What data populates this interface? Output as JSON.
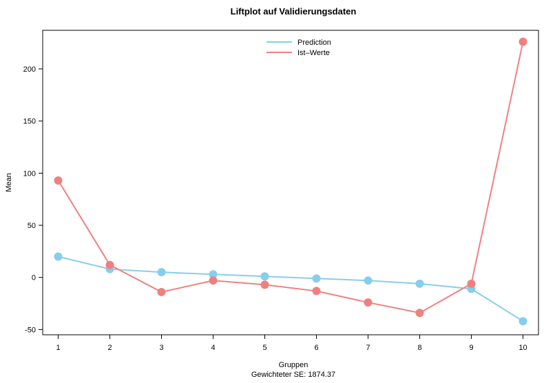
{
  "chart_data": {
    "type": "line",
    "title": "Liftplot auf Validierungsdaten",
    "xlabel": "Gruppen",
    "subtitle": "Gewichteter SE: 1874.37",
    "ylabel": "Mean",
    "x": [
      1,
      2,
      3,
      4,
      5,
      6,
      7,
      8,
      9,
      10
    ],
    "xticks": [
      "1",
      "2",
      "3",
      "4",
      "5",
      "6",
      "7",
      "8",
      "9",
      "10"
    ],
    "yticks": [
      -50,
      0,
      50,
      100,
      150,
      200
    ],
    "xlim": [
      0.7,
      10.3
    ],
    "ylim": [
      -55,
      237
    ],
    "grid": false,
    "legend_position": "top-center",
    "series": [
      {
        "name": "Prediction",
        "color": "#87CEEB",
        "values": [
          20,
          8,
          5,
          3,
          1,
          -1,
          -3,
          -6,
          -11,
          -42
        ]
      },
      {
        "name": "Ist–Werte",
        "color": "#F08080",
        "values": [
          93,
          12,
          -14,
          -3,
          -7,
          -13,
          -24,
          -34,
          -6,
          226
        ]
      }
    ]
  }
}
